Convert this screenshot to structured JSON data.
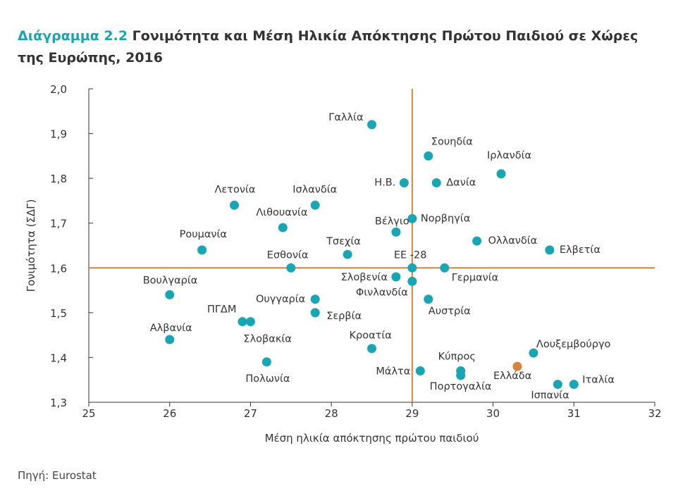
{
  "figure": {
    "number_label": "Διάγραμμα 2.2",
    "title_text": "Γονιμότητα και Μέση Ηλικία Απόκτησης Πρώτου Παιδιού σε Χώρες της Ευρώπης, 2016",
    "source": "Πηγή: Eurostat"
  },
  "colors": {
    "point": "#1aa5b5",
    "highlight": "#d9823b",
    "reference_line": "#d9823b",
    "axis": "#333333",
    "title_accent": "#1aa5b5"
  },
  "chart_data": {
    "type": "scatter",
    "title": "Γονιμότητα και Μέση Ηλικία Απόκτησης Πρώτου Παιδιού σε Χώρες της Ευρώπης, 2016",
    "xlabel": "Μέση ηλικία απόκτησης πρώτου παιδιού",
    "ylabel": "Γονιμότητα (ΣΔΓ)",
    "xlim": [
      25,
      32
    ],
    "ylim": [
      1.3,
      2.0
    ],
    "x_ticks": [
      "25",
      "26",
      "27",
      "28",
      "29",
      "30",
      "31",
      "32"
    ],
    "y_ticks": [
      "1,3",
      "1,4",
      "1,5",
      "1,6",
      "1,7",
      "1,8",
      "1,9",
      "2,0"
    ],
    "reference_lines": {
      "x": 29.0,
      "y": 1.6
    },
    "grid": false,
    "points": [
      {
        "label": "Γαλλία",
        "x": 28.5,
        "y": 1.92
      },
      {
        "label": "Σουηδία",
        "x": 29.2,
        "y": 1.85
      },
      {
        "label": "Ιρλανδία",
        "x": 30.1,
        "y": 1.81
      },
      {
        "label": "Η.Β.",
        "x": 28.9,
        "y": 1.79
      },
      {
        "label": "Δανία",
        "x": 29.3,
        "y": 1.79
      },
      {
        "label": "Λετονία",
        "x": 26.8,
        "y": 1.74
      },
      {
        "label": "Ισλανδία",
        "x": 27.8,
        "y": 1.74
      },
      {
        "label": "Λιθουανία",
        "x": 27.4,
        "y": 1.69
      },
      {
        "label": "Νορβηγία",
        "x": 29.0,
        "y": 1.71
      },
      {
        "label": "Βέλγιο",
        "x": 28.8,
        "y": 1.68
      },
      {
        "label": "Ολλανδία",
        "x": 29.8,
        "y": 1.66
      },
      {
        "label": "Ελβετία",
        "x": 30.7,
        "y": 1.64
      },
      {
        "label": "Ρουμανία",
        "x": 26.4,
        "y": 1.64
      },
      {
        "label": "Τσεχία",
        "x": 28.2,
        "y": 1.63
      },
      {
        "label": "Εσθονία",
        "x": 27.5,
        "y": 1.6
      },
      {
        "label": "ΕΕ -28",
        "x": 29.0,
        "y": 1.6
      },
      {
        "label": "Γερμανία",
        "x": 29.4,
        "y": 1.6
      },
      {
        "label": "Σλοβενία",
        "x": 28.8,
        "y": 1.58
      },
      {
        "label": "Φινλανδία",
        "x": 29.0,
        "y": 1.57
      },
      {
        "label": "Βουλγαρία",
        "x": 26.0,
        "y": 1.54
      },
      {
        "label": "Ουγγαρία",
        "x": 27.8,
        "y": 1.53
      },
      {
        "label": "Αυστρία",
        "x": 29.2,
        "y": 1.53
      },
      {
        "label": "Σερβία",
        "x": 27.8,
        "y": 1.5
      },
      {
        "label": "ΠΓΔΜ",
        "x": 26.9,
        "y": 1.48
      },
      {
        "label": "Σλοβακία",
        "x": 27.0,
        "y": 1.48
      },
      {
        "label": "Αλβανία",
        "x": 26.0,
        "y": 1.44
      },
      {
        "label": "Κροατία",
        "x": 28.5,
        "y": 1.42
      },
      {
        "label": "Λουξεμβούργο",
        "x": 30.5,
        "y": 1.41
      },
      {
        "label": "Πολωνία",
        "x": 27.2,
        "y": 1.39
      },
      {
        "label": "Μάλτα",
        "x": 29.1,
        "y": 1.37
      },
      {
        "label": "Κύπρος",
        "x": 29.6,
        "y": 1.37
      },
      {
        "label": "Πορτογαλία",
        "x": 29.6,
        "y": 1.36
      },
      {
        "label": "Ελλάδα",
        "x": 30.3,
        "y": 1.38,
        "highlight": true
      },
      {
        "label": "Ισπανία",
        "x": 30.8,
        "y": 1.34
      },
      {
        "label": "Ιταλία",
        "x": 31.0,
        "y": 1.34
      }
    ]
  }
}
